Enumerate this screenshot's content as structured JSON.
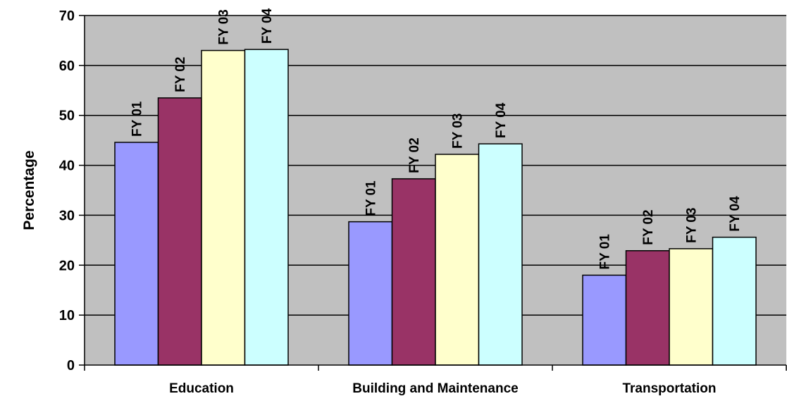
{
  "chart_data": {
    "type": "bar",
    "ylabel": "Percentage",
    "ylim": [
      0,
      70
    ],
    "yticks": [
      0,
      10,
      20,
      30,
      40,
      50,
      60,
      70
    ],
    "categories": [
      "Education",
      "Building and Maintenance",
      "Transportation"
    ],
    "series": [
      {
        "name": "FY 01",
        "values": [
          44.6,
          28.7,
          18.0
        ],
        "color": "#9999ff"
      },
      {
        "name": "FY 02",
        "values": [
          53.5,
          37.3,
          22.9
        ],
        "color": "#993366"
      },
      {
        "name": "FY 03",
        "values": [
          63.0,
          42.2,
          23.3
        ],
        "color": "#ffffcc"
      },
      {
        "name": "FY 04",
        "values": [
          63.2,
          44.3,
          25.6
        ],
        "color": "#ccffff"
      }
    ],
    "grid": true,
    "plot_background": "#c0c0c0",
    "legend": "none (series names shown as vertical data labels above bars)"
  }
}
